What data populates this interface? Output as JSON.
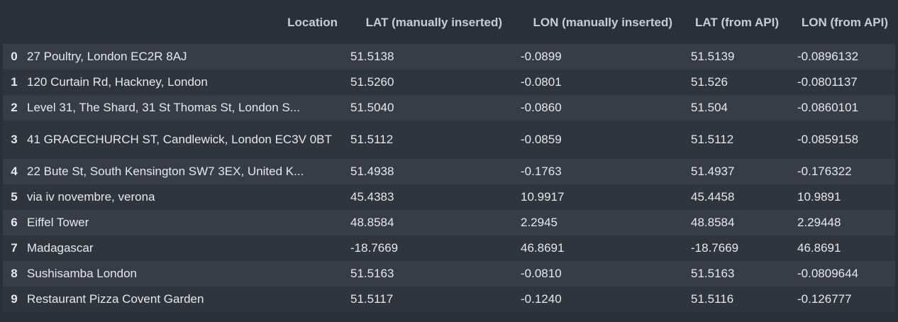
{
  "table": {
    "columns": [
      "",
      "Location",
      "LAT (manually inserted)",
      "LON (manually inserted)",
      "LAT (from API)",
      "LON (from API)"
    ],
    "rows": [
      {
        "index": "0",
        "location": "27 Poultry, London EC2R 8AJ",
        "lat_manual": "51.5138",
        "lon_manual": "-0.0899",
        "lat_api": "51.5139",
        "lon_api": "-0.0896132"
      },
      {
        "index": "1",
        "location": "120 Curtain Rd, Hackney, London",
        "lat_manual": "51.5260",
        "lon_manual": "-0.0801",
        "lat_api": "51.526",
        "lon_api": "-0.0801137"
      },
      {
        "index": "2",
        "location": "Level 31, The Shard, 31 St Thomas St, London S...",
        "lat_manual": "51.5040",
        "lon_manual": "-0.0860",
        "lat_api": "51.504",
        "lon_api": "-0.0860101"
      },
      {
        "index": "3",
        "location": "41 GRACECHURCH ST, Candlewick, London EC3V 0BT",
        "lat_manual": "51.5112",
        "lon_manual": "-0.0859",
        "lat_api": "51.5112",
        "lon_api": "-0.0859158"
      },
      {
        "index": "4",
        "location": "22 Bute St, South Kensington SW7 3EX, United K...",
        "lat_manual": "51.4938",
        "lon_manual": "-0.1763",
        "lat_api": "51.4937",
        "lon_api": "-0.176322"
      },
      {
        "index": "5",
        "location": "via iv novembre, verona",
        "lat_manual": "45.4383",
        "lon_manual": "10.9917",
        "lat_api": "45.4458",
        "lon_api": "10.9891"
      },
      {
        "index": "6",
        "location": "Eiffel Tower",
        "lat_manual": "48.8584",
        "lon_manual": "2.2945",
        "lat_api": "48.8584",
        "lon_api": "2.29448"
      },
      {
        "index": "7",
        "location": "Madagascar",
        "lat_manual": "-18.7669",
        "lon_manual": "46.8691",
        "lat_api": "-18.7669",
        "lon_api": "46.8691"
      },
      {
        "index": "8",
        "location": "Sushisamba London",
        "lat_manual": "51.5163",
        "lon_manual": "-0.0810",
        "lat_api": "51.5163",
        "lon_api": "-0.0809644"
      },
      {
        "index": "9",
        "location": "Restaurant Pizza Covent Garden",
        "lat_manual": "51.5117",
        "lon_manual": "-0.1240",
        "lat_api": "51.5116",
        "lon_api": "-0.126777"
      }
    ]
  },
  "colors": {
    "background": "#2b2f38",
    "row_odd": "#373c46",
    "row_even": "#2f343d",
    "text": "#e6e8ec",
    "header_text": "#c9ccd2"
  }
}
